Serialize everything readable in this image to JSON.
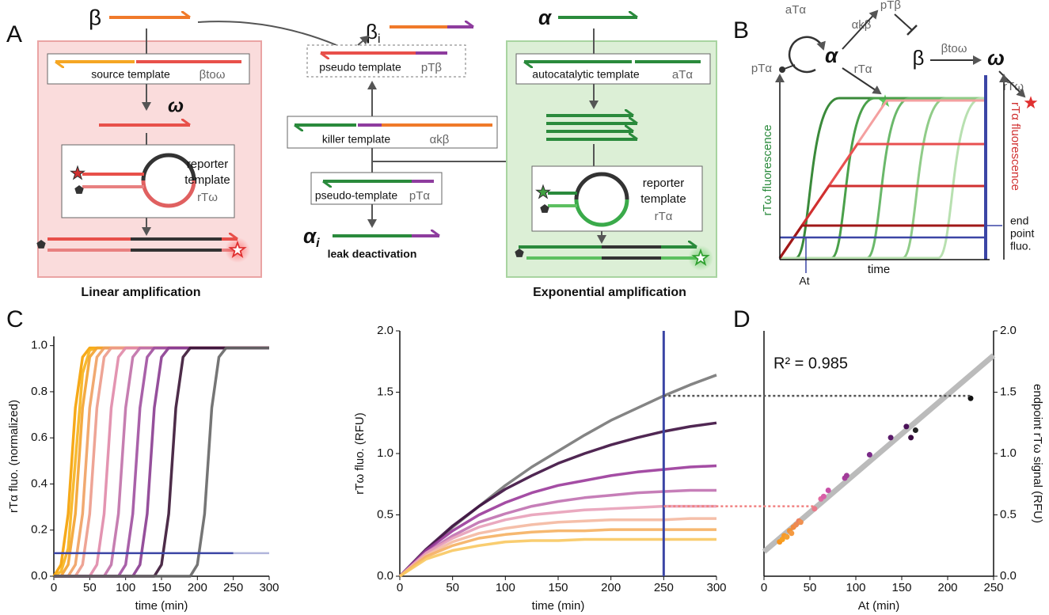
{
  "figure": {
    "panel_labels": [
      "A",
      "B",
      "C",
      "D"
    ],
    "A": {
      "beta": "β",
      "source_template": "source template",
      "source_code": "βtoω",
      "omega": "ω",
      "reporter_left": [
        "reporter",
        "template",
        "rTω"
      ],
      "linear": "Linear amplification",
      "beta_i": {
        "base": "β",
        "sub": "i"
      },
      "pseudo_template": "pseudo template",
      "pseudo_code": "pTβ",
      "killer_template": "killer template",
      "killer_code": "αkβ",
      "pseudo_template2": "pseudo-template",
      "pseudo2_code": "pTα",
      "alpha_i": {
        "base": "α",
        "sub": "i"
      },
      "leak": "leak deactivation",
      "alpha": "α",
      "autocatalytic": "autocatalytic template",
      "auto_code": "aTα",
      "reporter_right": [
        "reporter",
        "template",
        "rTα"
      ],
      "exponential": "Exponential amplification"
    },
    "B": {
      "pTa": "pTα",
      "aTa": "aTα",
      "alpha": "α",
      "akb": "αkβ",
      "pTb": "pTβ",
      "rTa": "rTα",
      "beta": "β",
      "btow": "βtoω",
      "omega": "ω",
      "rTw": "rTω",
      "y_left": "rTω fluorescence",
      "y_right": "rTα fluorescence",
      "x": "time",
      "at": "At",
      "end": [
        "end",
        "point",
        "fluo."
      ]
    }
  },
  "chart_data": [
    {
      "type": "line",
      "xlabel": "time (min)",
      "ylabel": "rTα fluo. (normalized)",
      "xlim": [
        0,
        300
      ],
      "xticks": [
        0,
        50,
        100,
        150,
        200,
        250,
        300
      ],
      "ylim": [
        0,
        1.04
      ],
      "yticks": [
        {
          "value": 0,
          "label": "0.0"
        },
        0.2,
        0.4,
        0.6,
        0.8,
        {
          "value": 1,
          "label": "1.0"
        }
      ],
      "threshold": {
        "value": 0.1,
        "x_end": 250,
        "color": "#3b45a5"
      },
      "x": [
        0,
        10,
        20,
        30,
        40,
        50,
        60,
        70,
        80,
        90,
        100,
        110,
        120,
        130,
        140,
        150,
        160,
        170,
        180,
        190,
        200,
        210,
        220,
        230,
        240,
        250,
        260,
        270,
        280,
        290,
        300
      ],
      "series": [
        {
          "color": "#f5a000",
          "values": [
            0,
            0.05,
            0.27,
            0.73,
            0.95,
            0.99,
            0.99,
            0.99,
            0.99,
            0.99,
            0.99,
            0.99,
            0.99,
            0.99,
            0.99,
            0.99,
            0.99,
            0.99,
            0.99,
            0.99,
            0.99,
            0.99,
            0.99,
            0.99,
            0.99,
            0.99,
            0.99,
            0.99,
            0.99,
            0.99,
            0.99
          ]
        },
        {
          "color": "#f7b21a",
          "values": [
            0,
            0.02,
            0.12,
            0.5,
            0.88,
            0.98,
            0.99,
            0.99,
            0.99,
            0.99,
            0.99,
            0.99,
            0.99,
            0.99,
            0.99,
            0.99,
            0.99,
            0.99,
            0.99,
            0.99,
            0.99,
            0.99,
            0.99,
            0.99,
            0.99,
            0.99,
            0.99,
            0.99,
            0.99,
            0.99,
            0.99
          ]
        },
        {
          "color": "#f3a22e",
          "values": [
            0,
            0,
            0.05,
            0.27,
            0.73,
            0.95,
            0.99,
            0.99,
            0.99,
            0.99,
            0.99,
            0.99,
            0.99,
            0.99,
            0.99,
            0.99,
            0.99,
            0.99,
            0.99,
            0.99,
            0.99,
            0.99,
            0.99,
            0.99,
            0.99,
            0.99,
            0.99,
            0.99,
            0.99,
            0.99,
            0.99
          ]
        },
        {
          "color": "#f0a060",
          "values": [
            0,
            0,
            0,
            0.05,
            0.27,
            0.73,
            0.95,
            0.99,
            0.99,
            0.99,
            0.99,
            0.99,
            0.99,
            0.99,
            0.99,
            0.99,
            0.99,
            0.99,
            0.99,
            0.99,
            0.99,
            0.99,
            0.99,
            0.99,
            0.99,
            0.99,
            0.99,
            0.99,
            0.99,
            0.99,
            0.99
          ]
        },
        {
          "color": "#ec9a8a",
          "values": [
            0,
            0,
            0,
            0,
            0.05,
            0.27,
            0.73,
            0.95,
            0.99,
            0.99,
            0.99,
            0.99,
            0.99,
            0.99,
            0.99,
            0.99,
            0.99,
            0.99,
            0.99,
            0.99,
            0.99,
            0.99,
            0.99,
            0.99,
            0.99,
            0.99,
            0.99,
            0.99,
            0.99,
            0.99,
            0.99
          ]
        },
        {
          "color": "#e088a8",
          "values": [
            0,
            0,
            0,
            0,
            0,
            0,
            0.05,
            0.27,
            0.73,
            0.95,
            0.99,
            0.99,
            0.99,
            0.99,
            0.99,
            0.99,
            0.99,
            0.99,
            0.99,
            0.99,
            0.99,
            0.99,
            0.99,
            0.99,
            0.99,
            0.99,
            0.99,
            0.99,
            0.99,
            0.99,
            0.99
          ]
        },
        {
          "color": "#c070a8",
          "values": [
            0,
            0,
            0,
            0,
            0,
            0,
            0,
            0,
            0.05,
            0.27,
            0.73,
            0.95,
            0.99,
            0.99,
            0.99,
            0.99,
            0.99,
            0.99,
            0.99,
            0.99,
            0.99,
            0.99,
            0.99,
            0.99,
            0.99,
            0.99,
            0.99,
            0.99,
            0.99,
            0.99,
            0.99
          ]
        },
        {
          "color": "#a050a0",
          "values": [
            0,
            0,
            0,
            0,
            0,
            0,
            0,
            0,
            0,
            0,
            0.05,
            0.27,
            0.73,
            0.95,
            0.99,
            0.99,
            0.99,
            0.99,
            0.99,
            0.99,
            0.99,
            0.99,
            0.99,
            0.99,
            0.99,
            0.99,
            0.99,
            0.99,
            0.99,
            0.99,
            0.99
          ]
        },
        {
          "color": "#8a3c90",
          "values": [
            0,
            0,
            0,
            0,
            0,
            0,
            0,
            0,
            0,
            0,
            0,
            0,
            0.05,
            0.27,
            0.73,
            0.95,
            0.99,
            0.99,
            0.99,
            0.99,
            0.99,
            0.99,
            0.99,
            0.99,
            0.99,
            0.99,
            0.99,
            0.99,
            0.99,
            0.99,
            0.99
          ]
        },
        {
          "color": "#3a1535",
          "values": [
            0,
            0,
            0,
            0,
            0,
            0,
            0,
            0,
            0,
            0,
            0,
            0,
            0,
            0,
            0,
            0.05,
            0.27,
            0.73,
            0.95,
            0.99,
            0.99,
            0.99,
            0.99,
            0.99,
            0.99,
            0.99,
            0.99,
            0.99,
            0.99,
            0.99,
            0.99
          ]
        },
        {
          "color": "#666666",
          "values": [
            0,
            0,
            0,
            0,
            0,
            0,
            0,
            0,
            0,
            0,
            0,
            0,
            0,
            0,
            0,
            0,
            0,
            0,
            0,
            0,
            0.05,
            0.27,
            0.73,
            0.95,
            0.99,
            0.99,
            0.99,
            0.99,
            0.99,
            0.99,
            0.99
          ]
        }
      ]
    },
    {
      "type": "line",
      "xlabel": "time (min)",
      "ylabel": "rTω fluo. (RFU)",
      "xlim": [
        0,
        300
      ],
      "xticks": [
        0,
        50,
        100,
        150,
        200,
        250,
        300
      ],
      "ylim": [
        0,
        2
      ],
      "yticks": [
        {
          "value": 0,
          "label": "0.0"
        },
        0.5,
        {
          "value": 1,
          "label": "1.0"
        },
        1.5,
        {
          "value": 2,
          "label": "2.0"
        }
      ],
      "marker_x": {
        "value": 250,
        "color": "#3b45a5"
      },
      "guides": [
        {
          "value": 1.47,
          "x_end": 225,
          "color": "#555555"
        },
        {
          "value": 0.57,
          "x_end": 55,
          "color": "#f08080"
        }
      ],
      "x": [
        0,
        25,
        50,
        75,
        100,
        125,
        150,
        175,
        200,
        225,
        250,
        275,
        300
      ],
      "series": [
        {
          "color": "#777777",
          "values": [
            0,
            0.21,
            0.4,
            0.57,
            0.74,
            0.89,
            1.02,
            1.15,
            1.27,
            1.37,
            1.47,
            1.56,
            1.64
          ]
        },
        {
          "color": "#3d1040",
          "values": [
            0,
            0.22,
            0.41,
            0.57,
            0.71,
            0.82,
            0.92,
            1.0,
            1.07,
            1.13,
            1.18,
            1.22,
            1.25
          ]
        },
        {
          "color": "#9a3a9a",
          "values": [
            0,
            0.21,
            0.37,
            0.5,
            0.6,
            0.68,
            0.74,
            0.78,
            0.82,
            0.85,
            0.87,
            0.89,
            0.9
          ]
        },
        {
          "color": "#c070b0",
          "values": [
            0,
            0.19,
            0.33,
            0.44,
            0.51,
            0.57,
            0.61,
            0.64,
            0.66,
            0.68,
            0.69,
            0.7,
            0.7
          ]
        },
        {
          "color": "#e8a0b8",
          "values": [
            0,
            0.19,
            0.31,
            0.4,
            0.46,
            0.5,
            0.52,
            0.54,
            0.55,
            0.56,
            0.57,
            0.57,
            0.57
          ]
        },
        {
          "color": "#f4b8a0",
          "values": [
            0,
            0.17,
            0.28,
            0.35,
            0.39,
            0.42,
            0.44,
            0.45,
            0.46,
            0.46,
            0.46,
            0.47,
            0.47
          ]
        },
        {
          "color": "#f5b060",
          "values": [
            0,
            0.16,
            0.25,
            0.31,
            0.34,
            0.36,
            0.37,
            0.37,
            0.38,
            0.38,
            0.38,
            0.38,
            0.38
          ]
        },
        {
          "color": "#f8c860",
          "values": [
            0,
            0.14,
            0.21,
            0.25,
            0.28,
            0.29,
            0.29,
            0.3,
            0.3,
            0.3,
            0.3,
            0.3,
            0.3
          ]
        }
      ]
    },
    {
      "type": "scatter",
      "xlabel": "At (min)",
      "ylabel": "endpoint rTω signal (RFU)",
      "annotation": "R² = 0.985",
      "xlim": [
        0,
        250
      ],
      "xticks": [
        0,
        50,
        100,
        150,
        200,
        250
      ],
      "ylim": [
        0,
        2
      ],
      "yticks": [
        {
          "value": 0,
          "label": "0.0"
        },
        0.5,
        {
          "value": 1,
          "label": "1.0"
        },
        1.5,
        {
          "value": 2,
          "label": "2.0"
        }
      ],
      "fit": {
        "intercept": 0.2,
        "slope": 0.0064,
        "color": "#bbbbbb"
      },
      "x": [
        17,
        20,
        22,
        25,
        28,
        30,
        32,
        35,
        38,
        40,
        55,
        62,
        65,
        70,
        88,
        90,
        115,
        138,
        155,
        160,
        165,
        225
      ],
      "y": [
        0.28,
        0.3,
        0.33,
        0.32,
        0.37,
        0.35,
        0.4,
        0.42,
        0.45,
        0.44,
        0.55,
        0.63,
        0.65,
        0.7,
        0.8,
        0.82,
        0.99,
        1.13,
        1.22,
        1.13,
        1.19,
        1.45
      ],
      "colors": [
        "#f7941d",
        "#f8a020",
        "#f79a28",
        "#f5a030",
        "#f39030",
        "#f59a40",
        "#f08a40",
        "#ee8a50",
        "#ec8060",
        "#f09050",
        "#ea7a8a",
        "#e06aa0",
        "#d860a8",
        "#c850a8",
        "#a83c9c",
        "#a03c98",
        "#7a2a88",
        "#5a1a6a",
        "#4a1058",
        "#3a0c40",
        "#222222",
        "#111111"
      ]
    }
  ]
}
